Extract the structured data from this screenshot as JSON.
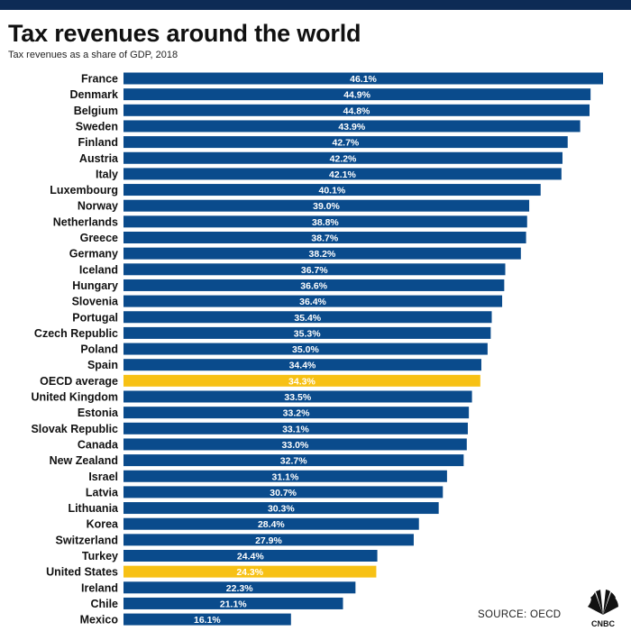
{
  "header": {
    "title": "Tax revenues around the world",
    "subtitle": "Tax revenues as a share of GDP, 2018"
  },
  "footer": {
    "source": "SOURCE: OECD",
    "logo_text": "CNBC"
  },
  "colors": {
    "bar": "#0a4b8c",
    "highlight": "#f7c115",
    "topbar": "#0d2b55"
  },
  "chart_data": {
    "type": "bar",
    "orientation": "horizontal",
    "title": "Tax revenues around the world",
    "subtitle": "Tax revenues as a share of GDP, 2018",
    "value_suffix": "%",
    "xlim": [
      0,
      46.1
    ],
    "categories": [
      "France",
      "Denmark",
      "Belgium",
      "Sweden",
      "Finland",
      "Austria",
      "Italy",
      "Luxembourg",
      "Norway",
      "Netherlands",
      "Greece",
      "Germany",
      "Iceland",
      "Hungary",
      "Slovenia",
      "Portugal",
      "Czech Republic",
      "Poland",
      "Spain",
      "OECD average",
      "United Kingdom",
      "Estonia",
      "Slovak Republic",
      "Canada",
      "New Zealand",
      "Israel",
      "Latvia",
      "Lithuania",
      "Korea",
      "Switzerland",
      "Turkey",
      "United States",
      "Ireland",
      "Chile",
      "Mexico"
    ],
    "values": [
      46.1,
      44.9,
      44.8,
      43.9,
      42.7,
      42.2,
      42.1,
      40.1,
      39.0,
      38.8,
      38.7,
      38.2,
      36.7,
      36.6,
      36.4,
      35.4,
      35.3,
      35.0,
      34.4,
      34.3,
      33.5,
      33.2,
      33.1,
      33.0,
      32.7,
      31.1,
      30.7,
      30.3,
      28.4,
      27.9,
      24.4,
      24.3,
      22.3,
      21.1,
      16.1
    ],
    "labels": [
      "46.1%",
      "44.9%",
      "44.8%",
      "43.9%",
      "42.7%",
      "42.2%",
      "42.1%",
      "40.1%",
      "39.0%",
      "38.8%",
      "38.7%",
      "38.2%",
      "36.7%",
      "36.6%",
      "36.4%",
      "35.4%",
      "35.3%",
      "35.0%",
      "34.4%",
      "34.3%",
      "33.5%",
      "33.2%",
      "33.1%",
      "33.0%",
      "32.7%",
      "31.1%",
      "30.7%",
      "30.3%",
      "28.4%",
      "27.9%",
      "24.4%",
      "24.3%",
      "22.3%",
      "21.1%",
      "16.1%"
    ],
    "highlighted": [
      "OECD average",
      "United States"
    ],
    "source": "SOURCE: OECD"
  }
}
